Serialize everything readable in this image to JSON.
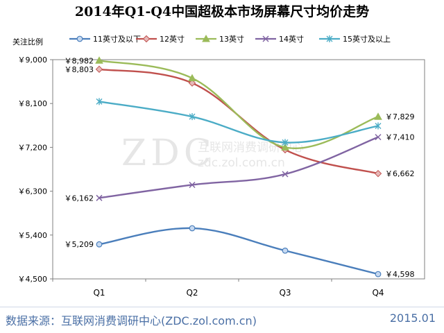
{
  "chart_data": {
    "type": "line",
    "title": "2014年Q1-Q4中国超极本市场屏幕尺寸均价走势",
    "ylabel": "关注比例",
    "categories": [
      "Q1",
      "Q2",
      "Q3",
      "Q4"
    ],
    "yticks": [
      "￥9,000",
      "￥8,100",
      "￥7,200",
      "￥6,300",
      "￥5,400",
      "￥4,500"
    ],
    "ylim": [
      4500,
      9000
    ],
    "series": [
      {
        "name": "11英寸及以下",
        "values": [
          5209,
          5540,
          5080,
          4598
        ],
        "color": "#4a7ebb",
        "marker": "circle",
        "labels": [
          {
            "index": 0,
            "text": "￥5,209"
          },
          {
            "index": 3,
            "text": "￥4,598"
          }
        ]
      },
      {
        "name": "12英寸",
        "values": [
          8803,
          8520,
          7150,
          6662
        ],
        "color": "#c0504d",
        "marker": "diamond",
        "labels": [
          {
            "index": 0,
            "text": "￥8,803"
          },
          {
            "index": 3,
            "text": "￥6,662"
          }
        ]
      },
      {
        "name": "13英寸",
        "values": [
          8982,
          8620,
          7200,
          7829
        ],
        "color": "#9bbb59",
        "marker": "triangle",
        "labels": [
          {
            "index": 0,
            "text": "￥8,982"
          },
          {
            "index": 3,
            "text": "￥7,829"
          }
        ]
      },
      {
        "name": "14英寸",
        "values": [
          6162,
          6430,
          6650,
          7410
        ],
        "color": "#8064a2",
        "marker": "x",
        "labels": [
          {
            "index": 0,
            "text": "￥6,162"
          },
          {
            "index": 3,
            "text": "￥7,410"
          }
        ]
      },
      {
        "name": "15英寸及以上",
        "values": [
          8140,
          7830,
          7300,
          7640
        ],
        "color": "#4bacc6",
        "marker": "asterisk",
        "labels": []
      }
    ],
    "grid": false,
    "legend_position": "top"
  },
  "footer": {
    "source": "数据来源：互联网消费调研中心(ZDC.zol.com.cn)",
    "date": "2015.01"
  },
  "watermark": {
    "main": "ZDC",
    "cn": "互联网消费调研中心",
    "url": "zdc.zol.com.cn"
  }
}
